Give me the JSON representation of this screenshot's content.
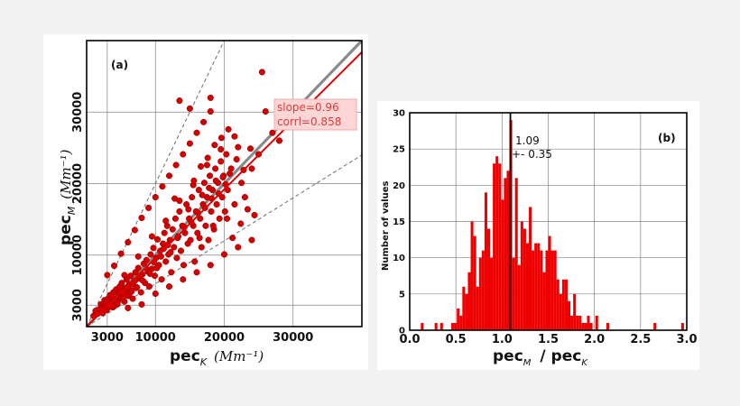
{
  "chart_data": [
    {
      "type": "scatter",
      "panel": "(a)",
      "xlabel": "pec",
      "xlabel_sub": "K",
      "xlabel_unit": "(Mm⁻¹)",
      "ylabel": "pec",
      "ylabel_sub": "M",
      "ylabel_unit": "(Mm⁻¹)",
      "xlim": [
        0,
        40000
      ],
      "ylim": [
        0,
        40000
      ],
      "xticks": [
        3000,
        10000,
        20000,
        30000
      ],
      "xtick_labels": [
        "3000",
        "10000",
        "20000",
        "30000"
      ],
      "yticks": [
        3000,
        10000,
        20000,
        30000
      ],
      "ytick_labels": [
        "3000",
        "10000",
        "20000",
        "30000"
      ],
      "gridlines": [
        3000,
        10000,
        20000,
        30000
      ],
      "grid": true,
      "series_color": "#d40000",
      "fit": {
        "slope": 0.96,
        "corr": 0.858,
        "label_slope": "slope=0.96",
        "label_corr": "corrl=0.858"
      },
      "reference_lines": [
        {
          "kind": "identity",
          "slope": 1.0,
          "style": "solid",
          "color": "#8a8a8a"
        },
        {
          "kind": "upper",
          "slope": 2.0,
          "style": "dashed",
          "color": "#777777"
        },
        {
          "kind": "lower",
          "slope": 0.6,
          "style": "dashed",
          "color": "#777777"
        }
      ],
      "points": [
        [
          1000,
          1500
        ],
        [
          1300,
          2200
        ],
        [
          1600,
          1800
        ],
        [
          1900,
          2500
        ],
        [
          2100,
          3100
        ],
        [
          2300,
          1900
        ],
        [
          2500,
          2800
        ],
        [
          2700,
          3500
        ],
        [
          2900,
          2300
        ],
        [
          3100,
          3900
        ],
        [
          3300,
          2900
        ],
        [
          3400,
          4400
        ],
        [
          3600,
          3300
        ],
        [
          3800,
          2700
        ],
        [
          3900,
          4800
        ],
        [
          4100,
          3600
        ],
        [
          4300,
          5200
        ],
        [
          4400,
          3100
        ],
        [
          4600,
          4200
        ],
        [
          4800,
          5600
        ],
        [
          5000,
          3900
        ],
        [
          5100,
          6100
        ],
        [
          5300,
          4600
        ],
        [
          5500,
          3500
        ],
        [
          5600,
          5400
        ],
        [
          5800,
          6600
        ],
        [
          6000,
          4300
        ],
        [
          6200,
          5900
        ],
        [
          6400,
          7100
        ],
        [
          6500,
          5100
        ],
        [
          6700,
          3900
        ],
        [
          6900,
          6300
        ],
        [
          7100,
          7600
        ],
        [
          7300,
          5500
        ],
        [
          7500,
          8200
        ],
        [
          7700,
          6700
        ],
        [
          7900,
          4800
        ],
        [
          8100,
          7300
        ],
        [
          8300,
          8800
        ],
        [
          8500,
          6100
        ],
        [
          8700,
          9300
        ],
        [
          8900,
          7700
        ],
        [
          9100,
          5600
        ],
        [
          9300,
          10100
        ],
        [
          9500,
          8100
        ],
        [
          9700,
          11000
        ],
        [
          9900,
          7100
        ],
        [
          10100,
          9600
        ],
        [
          10300,
          12200
        ],
        [
          10500,
          8600
        ],
        [
          10700,
          10600
        ],
        [
          10900,
          6600
        ],
        [
          11100,
          11600
        ],
        [
          11300,
          13100
        ],
        [
          11500,
          9100
        ],
        [
          11700,
          14100
        ],
        [
          11900,
          10100
        ],
        [
          12100,
          12100
        ],
        [
          12300,
          7600
        ],
        [
          12500,
          13600
        ],
        [
          12700,
          11100
        ],
        [
          12900,
          15100
        ],
        [
          13100,
          9600
        ],
        [
          13300,
          12600
        ],
        [
          13500,
          16100
        ],
        [
          13700,
          10600
        ],
        [
          13900,
          14100
        ],
        [
          14100,
          8600
        ],
        [
          14300,
          13100
        ],
        [
          14500,
          17100
        ],
        [
          14700,
          11600
        ],
        [
          14900,
          15100
        ],
        [
          15100,
          12100
        ],
        [
          15300,
          18100
        ],
        [
          15500,
          14100
        ],
        [
          15700,
          9100
        ],
        [
          15900,
          16100
        ],
        [
          16100,
          13100
        ],
        [
          16300,
          19100
        ],
        [
          16500,
          15100
        ],
        [
          16700,
          11100
        ],
        [
          16900,
          17100
        ],
        [
          17100,
          20100
        ],
        [
          17300,
          14100
        ],
        [
          17500,
          18100
        ],
        [
          17700,
          12100
        ],
        [
          17900,
          21100
        ],
        [
          18100,
          16100
        ],
        [
          18300,
          19100
        ],
        [
          18500,
          13600
        ],
        [
          18700,
          22100
        ],
        [
          18900,
          17100
        ],
        [
          19100,
          20100
        ],
        [
          19300,
          15100
        ],
        [
          19500,
          23100
        ],
        [
          19700,
          18100
        ],
        [
          19900,
          21100
        ],
        [
          20100,
          16100
        ],
        [
          20300,
          24100
        ],
        [
          20500,
          19100
        ],
        [
          21000,
          22100
        ],
        [
          21500,
          17100
        ],
        [
          22000,
          25100
        ],
        [
          22500,
          20100
        ],
        [
          23000,
          18100
        ],
        [
          24000,
          22100
        ],
        [
          25000,
          24100
        ],
        [
          26000,
          30100
        ],
        [
          27000,
          27100
        ],
        [
          28000,
          26000
        ],
        [
          4000,
          8500
        ],
        [
          5000,
          10200
        ],
        [
          6000,
          11800
        ],
        [
          7000,
          13500
        ],
        [
          8000,
          15200
        ],
        [
          9000,
          16600
        ],
        [
          10000,
          18100
        ],
        [
          11000,
          19600
        ],
        [
          12000,
          21100
        ],
        [
          13000,
          22600
        ],
        [
          14000,
          24100
        ],
        [
          15000,
          25600
        ],
        [
          16000,
          27100
        ],
        [
          17000,
          28600
        ],
        [
          18000,
          30100
        ],
        [
          3000,
          7200
        ],
        [
          13500,
          31600
        ],
        [
          15000,
          30500
        ],
        [
          18000,
          32000
        ],
        [
          25500,
          35600
        ],
        [
          6000,
          2600
        ],
        [
          8000,
          3100
        ],
        [
          10000,
          4600
        ],
        [
          12000,
          5600
        ],
        [
          14000,
          6600
        ],
        [
          16000,
          7600
        ],
        [
          18000,
          8600
        ],
        [
          20000,
          10100
        ],
        [
          22000,
          11100
        ],
        [
          24000,
          12100
        ],
        [
          5500,
          7200
        ],
        [
          7500,
          9800
        ],
        [
          9500,
          12600
        ],
        [
          11500,
          14800
        ],
        [
          13500,
          17600
        ],
        [
          15500,
          19800
        ],
        [
          17500,
          22600
        ],
        [
          19500,
          24800
        ],
        [
          21500,
          26600
        ],
        [
          12800,
          17900
        ],
        [
          2600,
          3700
        ],
        [
          3100,
          2600
        ],
        [
          3700,
          4100
        ],
        [
          4200,
          3000
        ],
        [
          4700,
          4700
        ],
        [
          5200,
          3800
        ],
        [
          5700,
          5200
        ],
        [
          6200,
          4600
        ],
        [
          6700,
          6000
        ],
        [
          7200,
          5400
        ],
        [
          2200,
          2400
        ],
        [
          2800,
          3200
        ],
        [
          3500,
          2900
        ],
        [
          4000,
          3700
        ],
        [
          4500,
          3300
        ],
        [
          5000,
          4900
        ],
        [
          5500,
          4300
        ],
        [
          6000,
          5500
        ],
        [
          6500,
          4900
        ],
        [
          7000,
          6400
        ],
        [
          7800,
          7100
        ],
        [
          8200,
          6400
        ],
        [
          8800,
          8000
        ],
        [
          9200,
          7400
        ],
        [
          9800,
          9000
        ],
        [
          10200,
          8200
        ],
        [
          10800,
          9800
        ],
        [
          11200,
          10900
        ],
        [
          11800,
          11400
        ],
        [
          12200,
          10400
        ],
        [
          13200,
          12400
        ],
        [
          14200,
          13900
        ],
        [
          15200,
          14600
        ],
        [
          16200,
          15900
        ],
        [
          17200,
          16600
        ],
        [
          18200,
          17900
        ],
        [
          19200,
          18600
        ],
        [
          20200,
          19900
        ],
        [
          14800,
          16400
        ],
        [
          16800,
          18400
        ],
        [
          17800,
          19400
        ],
        [
          18800,
          20400
        ],
        [
          19800,
          20900
        ],
        [
          20800,
          21400
        ],
        [
          21800,
          23400
        ],
        [
          22800,
          21900
        ],
        [
          23800,
          24900
        ],
        [
          16400,
          12400
        ],
        [
          18400,
          14100
        ],
        [
          20400,
          15100
        ],
        [
          21200,
          12400
        ],
        [
          22400,
          14400
        ],
        [
          23400,
          16400
        ],
        [
          24400,
          15600
        ],
        [
          15600,
          20400
        ],
        [
          16600,
          22400
        ],
        [
          17600,
          23600
        ],
        [
          18600,
          25400
        ],
        [
          19600,
          26400
        ],
        [
          20600,
          27600
        ]
      ]
    },
    {
      "type": "bar",
      "panel": "(b)",
      "xlabel": "pec",
      "xlabel_sub1": "M",
      "xlabel_mid": "/ pec",
      "xlabel_sub2": "K",
      "ylabel": "Number of values",
      "xlim": [
        0.0,
        3.0
      ],
      "ylim": [
        0,
        30
      ],
      "xticks": [
        0.0,
        0.5,
        1.0,
        1.5,
        2.0,
        2.5,
        3.0
      ],
      "xtick_labels": [
        "0.0",
        "0.5",
        "1.0",
        "1.5",
        "2.0",
        "2.5",
        "3.0"
      ],
      "yticks": [
        0,
        5,
        10,
        15,
        20,
        25,
        30
      ],
      "ytick_labels": [
        "0",
        "5",
        "10",
        "15",
        "20",
        "25",
        "30"
      ],
      "grid": true,
      "bin_width": 0.03,
      "bar_color": "#ee0000",
      "mean_line": {
        "x": 1.09,
        "color": "#000000"
      },
      "annotation": {
        "mean": "1.09",
        "std": "+- 0.35"
      },
      "bins": [
        [
          0.12,
          1
        ],
        [
          0.27,
          1
        ],
        [
          0.33,
          1
        ],
        [
          0.45,
          1
        ],
        [
          0.48,
          1
        ],
        [
          0.51,
          3
        ],
        [
          0.54,
          2
        ],
        [
          0.57,
          6
        ],
        [
          0.6,
          5
        ],
        [
          0.63,
          8
        ],
        [
          0.66,
          15
        ],
        [
          0.69,
          13
        ],
        [
          0.72,
          6
        ],
        [
          0.75,
          10
        ],
        [
          0.78,
          11
        ],
        [
          0.81,
          19
        ],
        [
          0.84,
          14
        ],
        [
          0.87,
          10
        ],
        [
          0.9,
          23
        ],
        [
          0.93,
          24
        ],
        [
          0.96,
          23
        ],
        [
          0.99,
          18
        ],
        [
          1.02,
          21
        ],
        [
          1.05,
          22
        ],
        [
          1.08,
          29
        ],
        [
          1.11,
          10
        ],
        [
          1.14,
          21
        ],
        [
          1.17,
          9
        ],
        [
          1.2,
          15
        ],
        [
          1.23,
          14
        ],
        [
          1.26,
          12
        ],
        [
          1.29,
          17
        ],
        [
          1.32,
          11
        ],
        [
          1.35,
          12
        ],
        [
          1.38,
          12
        ],
        [
          1.41,
          11
        ],
        [
          1.44,
          8
        ],
        [
          1.47,
          11
        ],
        [
          1.5,
          13
        ],
        [
          1.53,
          11
        ],
        [
          1.56,
          11
        ],
        [
          1.59,
          7
        ],
        [
          1.62,
          5
        ],
        [
          1.65,
          7
        ],
        [
          1.68,
          7
        ],
        [
          1.71,
          4
        ],
        [
          1.74,
          2
        ],
        [
          1.77,
          5
        ],
        [
          1.8,
          2
        ],
        [
          1.83,
          2
        ],
        [
          1.86,
          1
        ],
        [
          1.89,
          1
        ],
        [
          1.92,
          2
        ],
        [
          1.95,
          1
        ],
        [
          2.01,
          2
        ],
        [
          2.13,
          1
        ],
        [
          2.64,
          1
        ],
        [
          2.94,
          1
        ]
      ]
    }
  ]
}
